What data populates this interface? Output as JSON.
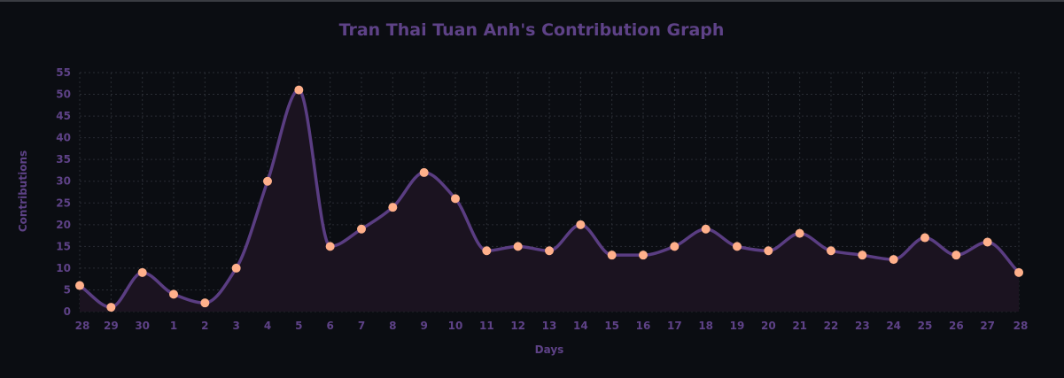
{
  "colors": {
    "background": "#0b0d12",
    "text": "#5e4287",
    "line": "#5a3d82",
    "area": "#1b1320",
    "point": "#ffb08b",
    "grid": "#2a2d34"
  },
  "chart_data": {
    "type": "area",
    "title": "Tran Thai Tuan Anh's Contribution Graph",
    "xlabel": "Days",
    "ylabel": "Contributions",
    "categories": [
      "28",
      "29",
      "30",
      "1",
      "2",
      "3",
      "4",
      "5",
      "6",
      "7",
      "8",
      "9",
      "10",
      "11",
      "12",
      "13",
      "14",
      "15",
      "16",
      "17",
      "18",
      "19",
      "20",
      "21",
      "22",
      "23",
      "24",
      "25",
      "26",
      "27",
      "28"
    ],
    "values": [
      6,
      1,
      9,
      4,
      2,
      10,
      30,
      51,
      15,
      19,
      24,
      32,
      26,
      14,
      15,
      14,
      20,
      13,
      13,
      15,
      19,
      15,
      14,
      18,
      14,
      13,
      12,
      17,
      13,
      16,
      9
    ],
    "ylim": [
      0,
      55
    ],
    "yticks": [
      0,
      5,
      10,
      15,
      20,
      25,
      30,
      35,
      40,
      45,
      50,
      55
    ],
    "grid": true,
    "legend": "none",
    "curve": "smooth"
  }
}
